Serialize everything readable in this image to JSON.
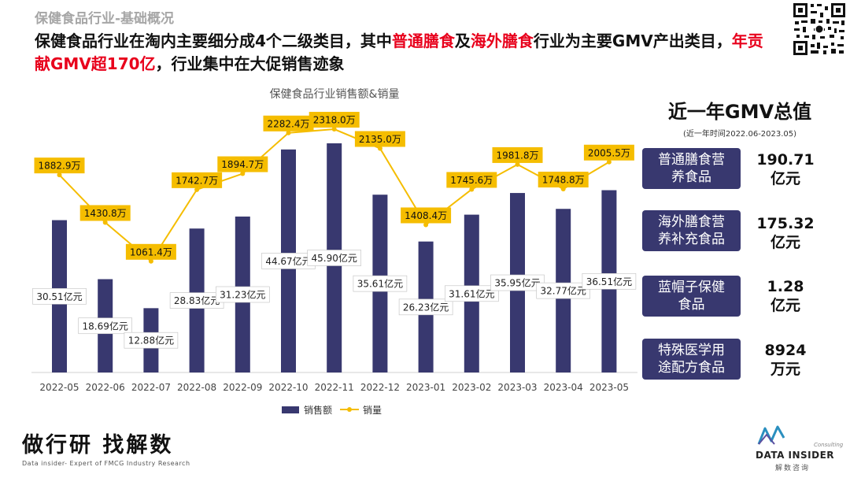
{
  "section_label": "保健食品行业-基础概况",
  "headline": {
    "p1": "保健食品行业在淘内主要细分成4个二级类目，其中",
    "p2": "普通膳食",
    "p3": "及",
    "p4": "海外膳食",
    "p5": "行业为主要GMV产出类目，",
    "p6": "年贡献GMV超170亿",
    "p7": "，行业集中在大促销售迹象"
  },
  "chart_data": {
    "type": "bar+line",
    "title": "保健食品行业销售额&销量",
    "categories": [
      "2022-05",
      "2022-06",
      "2022-07",
      "2022-08",
      "2022-09",
      "2022-10",
      "2022-11",
      "2022-12",
      "2023-01",
      "2023-02",
      "2023-03",
      "2023-04",
      "2023-05"
    ],
    "series": [
      {
        "name": "销售额",
        "type": "bar",
        "values": [
          30.51,
          18.69,
          12.88,
          28.83,
          31.23,
          44.67,
          45.9,
          35.61,
          26.23,
          31.61,
          35.95,
          32.77,
          36.51
        ],
        "labels": [
          "30.51亿元",
          "18.69亿元",
          "12.88亿元",
          "28.83亿元",
          "31.23亿元",
          "44.67亿元",
          "45.90亿元",
          "35.61亿元",
          "26.23亿元",
          "31.61亿元",
          "35.95亿元",
          "32.77亿元",
          "36.51亿元"
        ],
        "color": "#38386f"
      },
      {
        "name": "销量",
        "type": "line",
        "values": [
          1882.9,
          1430.8,
          1061.4,
          1742.7,
          1894.7,
          2282.4,
          2318.0,
          2135.0,
          1408.4,
          1745.6,
          1981.8,
          1748.8,
          2005.5
        ],
        "labels": [
          "1882.9万",
          "1430.8万",
          "1061.4万",
          "1742.7万",
          "1894.7万",
          "2282.4万",
          "2318.0万",
          "2135.0万",
          "1408.4万",
          "1745.6万",
          "1981.8万",
          "1748.8万",
          "2005.5万"
        ],
        "color": "#f5bd00"
      }
    ],
    "legend": "bottom-center",
    "grid": false
  },
  "side": {
    "title": "近一年GMV总值",
    "subtitle": "(近一年时间2022.06-2023.05)",
    "items": [
      {
        "cat_l1": "普通膳食营",
        "cat_l2": "养食品",
        "val_l1": "190.71",
        "val_l2": "亿元"
      },
      {
        "cat_l1": "海外膳食营",
        "cat_l2": "养补充食品",
        "val_l1": "175.32",
        "val_l2": "亿元"
      },
      {
        "cat_l1": "蓝帽子保健",
        "cat_l2": "食品",
        "val_l1": "1.28",
        "val_l2": "亿元"
      },
      {
        "cat_l1": "特殊医学用",
        "cat_l2": "途配方食品",
        "val_l1": "8924",
        "val_l2": "万元"
      }
    ]
  },
  "footer": {
    "slogan": "做行研 找解数",
    "slogan_sub": "Data insider- Expert of FMCG Industry Research",
    "logo_consult": "Consulting",
    "logo_name": "DATA INSIDER",
    "logo_cn": "解数咨询"
  },
  "colors": {
    "bar": "#38386f",
    "line": "#f5bd00",
    "highlight": "#e8001c"
  }
}
